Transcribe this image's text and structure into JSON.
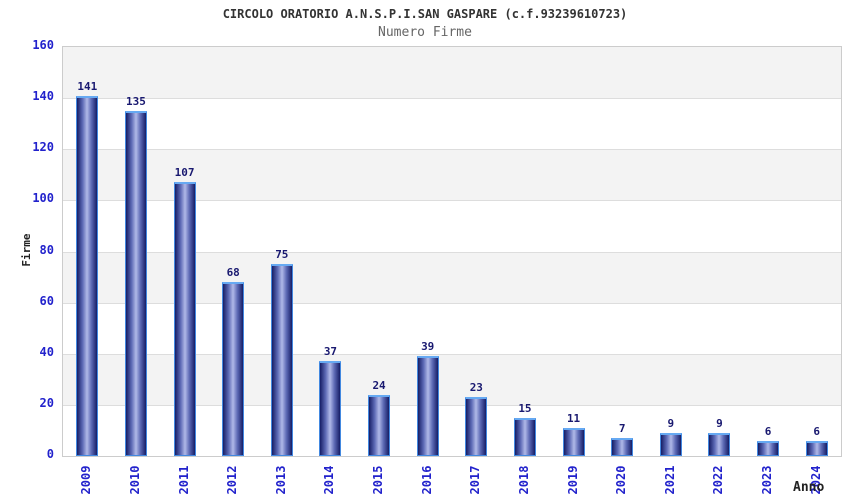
{
  "header": {
    "title": "CIRCOLO ORATORIO A.N.S.P.I.SAN GASPARE (c.f.93239610723)",
    "subtitle": "Numero Firme"
  },
  "chart_data": {
    "type": "bar",
    "title": "CIRCOLO ORATORIO A.N.S.P.I.SAN GASPARE (c.f.93239610723)",
    "subtitle": "Numero Firme",
    "categories": [
      "2009",
      "2010",
      "2011",
      "2012",
      "2013",
      "2014",
      "2015",
      "2016",
      "2017",
      "2018",
      "2019",
      "2020",
      "2021",
      "2022",
      "2023",
      "2024"
    ],
    "values": [
      141,
      135,
      107,
      68,
      75,
      37,
      24,
      39,
      23,
      15,
      11,
      7,
      9,
      9,
      6,
      6
    ],
    "xlabel": "Anno",
    "ylabel": "Firme",
    "ylim": [
      0,
      160
    ],
    "ytick_step": 20,
    "grid": "horizontal-bands",
    "legend": "none",
    "colors": {
      "bar_edge_dark": "#161d66",
      "bar_mid": "#5d6ab5",
      "bar_center_light": "#b0b9e8",
      "bar_outline": "#4288e0",
      "bar_cap": "#66a9f2",
      "tick_label": "#2222cc",
      "value_label": "#191970",
      "band_gray": "#f3f3f3",
      "band_white": "#ffffff",
      "gridline": "#dddddd",
      "plot_border": "#cccccc",
      "title": "#333333",
      "subtitle": "#666666",
      "axis_title": "#222222"
    }
  }
}
